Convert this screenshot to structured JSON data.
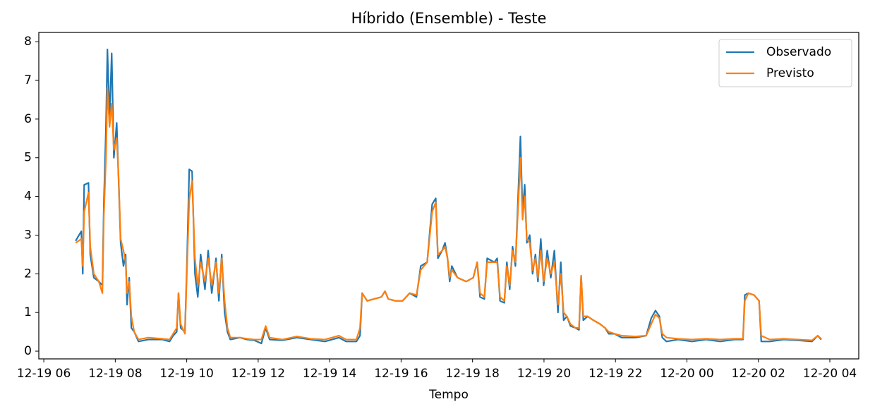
{
  "chart_data": {
    "type": "line",
    "title": "Híbrido (Ensemble) - Teste",
    "xlabel": "Tempo",
    "xlim": [
      5.86,
      28.81
    ],
    "ylim": [
      -0.2,
      8.24
    ],
    "xticks": [
      {
        "value": 6,
        "label": "12-19 06"
      },
      {
        "value": 8,
        "label": "12-19 08"
      },
      {
        "value": 10,
        "label": "12-19 10"
      },
      {
        "value": 12,
        "label": "12-19 12"
      },
      {
        "value": 14,
        "label": "12-19 14"
      },
      {
        "value": 16,
        "label": "12-19 16"
      },
      {
        "value": 18,
        "label": "12-19 18"
      },
      {
        "value": 20,
        "label": "12-19 20"
      },
      {
        "value": 22,
        "label": "12-19 22"
      },
      {
        "value": 24,
        "label": "12-20 00"
      },
      {
        "value": 26,
        "label": "12-20 02"
      },
      {
        "value": 28,
        "label": "12-20 04"
      }
    ],
    "yticks": [
      0,
      1,
      2,
      3,
      4,
      5,
      6,
      7,
      8
    ],
    "legend": "upper right",
    "grid": false,
    "x": [
      6.89,
      7.05,
      7.09,
      7.13,
      7.25,
      7.3,
      7.4,
      7.54,
      7.64,
      7.68,
      7.74,
      7.78,
      7.84,
      7.9,
      7.96,
      8.04,
      8.09,
      8.15,
      8.23,
      8.29,
      8.33,
      8.39,
      8.45,
      8.53,
      8.65,
      8.92,
      9.32,
      9.52,
      9.62,
      9.72,
      9.77,
      9.83,
      9.95,
      10.01,
      10.07,
      10.15,
      10.23,
      10.31,
      10.39,
      10.51,
      10.6,
      10.7,
      10.82,
      10.9,
      10.98,
      11.06,
      11.14,
      11.22,
      11.49,
      11.69,
      11.89,
      12.09,
      12.21,
      12.32,
      12.68,
      13.08,
      13.47,
      13.87,
      14.26,
      14.46,
      14.75,
      14.85,
      14.91,
      15.05,
      15.25,
      15.45,
      15.55,
      15.64,
      15.84,
      16.04,
      16.24,
      16.43,
      16.55,
      16.73,
      16.87,
      16.97,
      17.03,
      17.15,
      17.23,
      17.3,
      17.36,
      17.42,
      17.58,
      17.82,
      18.02,
      18.13,
      18.21,
      18.33,
      18.41,
      18.61,
      18.69,
      18.77,
      18.89,
      18.96,
      19.04,
      19.12,
      19.2,
      19.28,
      19.34,
      19.4,
      19.46,
      19.52,
      19.6,
      19.68,
      19.76,
      19.83,
      19.91,
      19.99,
      20.09,
      20.19,
      20.29,
      20.39,
      20.47,
      20.55,
      20.64,
      20.74,
      20.88,
      20.98,
      21.04,
      21.1,
      21.22,
      21.38,
      21.57,
      21.71,
      21.81,
      21.97,
      22.17,
      22.56,
      22.86,
      23.0,
      23.12,
      23.23,
      23.31,
      23.43,
      23.75,
      24.14,
      24.54,
      24.93,
      25.33,
      25.57,
      25.62,
      25.72,
      25.88,
      26.02,
      26.08,
      26.32,
      26.71,
      27.11,
      27.5,
      27.66,
      27.76
    ],
    "series": [
      {
        "name": "Observado",
        "color": "#1f77b4",
        "values": [
          2.85,
          3.1,
          2.0,
          4.3,
          4.35,
          2.5,
          1.9,
          1.8,
          1.7,
          3.8,
          5.8,
          7.8,
          6.0,
          7.7,
          5.0,
          5.9,
          4.5,
          2.8,
          2.2,
          2.5,
          1.2,
          1.9,
          0.6,
          0.5,
          0.25,
          0.3,
          0.3,
          0.25,
          0.4,
          0.5,
          1.5,
          0.6,
          0.5,
          2.4,
          4.7,
          4.65,
          2.0,
          1.4,
          2.5,
          1.6,
          2.6,
          1.5,
          2.4,
          1.3,
          2.5,
          1.0,
          0.5,
          0.3,
          0.35,
          0.3,
          0.28,
          0.2,
          0.6,
          0.3,
          0.28,
          0.35,
          0.3,
          0.25,
          0.35,
          0.25,
          0.25,
          0.4,
          1.5,
          1.3,
          1.35,
          1.4,
          1.55,
          1.35,
          1.3,
          1.3,
          1.5,
          1.4,
          2.2,
          2.3,
          3.8,
          3.95,
          2.4,
          2.6,
          2.8,
          2.4,
          1.8,
          2.2,
          1.9,
          1.8,
          1.9,
          2.3,
          1.4,
          1.35,
          2.4,
          2.3,
          2.4,
          1.3,
          1.25,
          2.3,
          1.6,
          2.7,
          2.2,
          4.1,
          5.55,
          3.6,
          4.3,
          2.8,
          3.0,
          2.0,
          2.5,
          1.8,
          2.9,
          1.7,
          2.6,
          1.9,
          2.6,
          1.0,
          2.3,
          0.8,
          0.9,
          0.65,
          0.6,
          0.55,
          1.95,
          0.8,
          0.9,
          0.8,
          0.7,
          0.6,
          0.45,
          0.45,
          0.35,
          0.35,
          0.4,
          0.85,
          1.05,
          0.9,
          0.35,
          0.25,
          0.3,
          0.25,
          0.3,
          0.25,
          0.3,
          0.3,
          1.45,
          1.5,
          1.45,
          1.3,
          0.25,
          0.25,
          0.3,
          0.28,
          0.25,
          0.4,
          0.3
        ]
      },
      {
        "name": "Previsto",
        "color": "#ff7f0e",
        "values": [
          2.8,
          2.9,
          2.2,
          3.6,
          4.1,
          2.7,
          2.0,
          1.8,
          1.5,
          3.5,
          5.0,
          6.8,
          5.8,
          6.4,
          5.2,
          5.5,
          4.6,
          2.9,
          2.6,
          2.3,
          1.5,
          1.8,
          0.9,
          0.5,
          0.3,
          0.35,
          0.32,
          0.3,
          0.45,
          0.6,
          1.5,
          0.7,
          0.45,
          2.2,
          3.9,
          4.4,
          2.4,
          1.7,
          2.3,
          1.8,
          2.4,
          1.7,
          2.3,
          1.5,
          2.4,
          1.3,
          0.6,
          0.35,
          0.35,
          0.32,
          0.3,
          0.3,
          0.65,
          0.35,
          0.3,
          0.38,
          0.32,
          0.3,
          0.4,
          0.3,
          0.3,
          0.6,
          1.5,
          1.3,
          1.35,
          1.4,
          1.55,
          1.35,
          1.3,
          1.3,
          1.5,
          1.45,
          2.1,
          2.3,
          3.6,
          3.85,
          2.5,
          2.6,
          2.7,
          2.4,
          1.9,
          2.1,
          1.9,
          1.8,
          1.9,
          2.3,
          1.5,
          1.4,
          2.3,
          2.3,
          2.3,
          1.4,
          1.3,
          2.2,
          1.7,
          2.6,
          2.3,
          3.8,
          5.0,
          3.4,
          4.0,
          2.9,
          2.8,
          2.1,
          2.4,
          1.9,
          2.6,
          1.8,
          2.4,
          2.0,
          2.3,
          1.2,
          2.0,
          1.0,
          0.9,
          0.7,
          0.6,
          0.6,
          1.95,
          0.9,
          0.9,
          0.8,
          0.7,
          0.6,
          0.5,
          0.45,
          0.4,
          0.38,
          0.4,
          0.7,
          0.95,
          0.85,
          0.45,
          0.35,
          0.32,
          0.3,
          0.32,
          0.3,
          0.32,
          0.32,
          1.3,
          1.5,
          1.45,
          1.3,
          0.4,
          0.3,
          0.32,
          0.3,
          0.28,
          0.4,
          0.32
        ]
      }
    ]
  }
}
